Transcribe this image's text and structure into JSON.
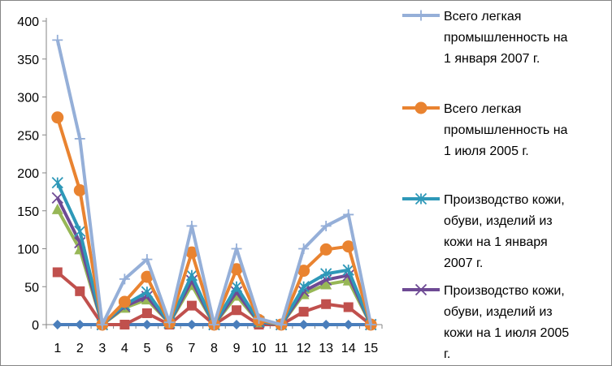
{
  "chart_data": {
    "type": "line",
    "title": "",
    "xlabel": "",
    "ylabel": "",
    "categories": [
      "1",
      "2",
      "3",
      "4",
      "5",
      "6",
      "7",
      "8",
      "9",
      "10",
      "11",
      "12",
      "13",
      "14",
      "15"
    ],
    "ylim": [
      0,
      400
    ],
    "yticks": [
      0,
      50,
      100,
      150,
      200,
      250,
      300,
      350,
      400
    ],
    "grid": false,
    "legend_position": "right",
    "series": [
      {
        "name_lines": [
          "Всего легкая",
          "промышленность на",
          "1 января 2007 г."
        ],
        "color": "#95AFD8",
        "marker": "plus",
        "values": [
          375,
          245,
          0,
          60,
          86,
          3,
          130,
          0,
          100,
          8,
          0,
          100,
          130,
          145,
          0
        ],
        "in_legend": true
      },
      {
        "name_lines": [
          "Всего легкая",
          "промышленность на",
          "1 июля 2005 г."
        ],
        "color": "#E98330",
        "marker": "circle",
        "values": [
          273,
          177,
          0,
          30,
          63,
          2,
          95,
          0,
          73,
          6,
          0,
          71,
          99,
          103,
          0
        ],
        "in_legend": true
      },
      {
        "name_lines": [
          "Производство кожи,",
          "обуви, изделий из",
          "кожи на 1 января",
          "2007 г."
        ],
        "color": "#2E98B8",
        "marker": "star",
        "values": [
          187,
          123,
          0,
          26,
          43,
          2,
          65,
          0,
          50,
          4,
          0,
          50,
          67,
          72,
          0
        ],
        "in_legend": true
      },
      {
        "name_lines": [
          "Производство кожи,",
          "обуви, изделий из",
          "кожи на 1 июля 2005",
          "г."
        ],
        "color": "#6E4A94",
        "marker": "x",
        "values": [
          167,
          108,
          0,
          24,
          37,
          2,
          58,
          0,
          43,
          3,
          0,
          44,
          59,
          65,
          0
        ],
        "in_legend": true
      },
      {
        "name_lines": [],
        "color": "#97B756",
        "marker": "triangle",
        "values": [
          152,
          99,
          0,
          22,
          33,
          2,
          52,
          0,
          38,
          3,
          0,
          40,
          53,
          58,
          0
        ],
        "in_legend": false
      },
      {
        "name_lines": [],
        "color": "#C0504D",
        "marker": "square",
        "values": [
          69,
          44,
          0,
          0,
          15,
          0,
          25,
          0,
          19,
          0,
          0,
          17,
          27,
          23,
          0
        ],
        "in_legend": false
      },
      {
        "name_lines": [],
        "color": "#4A7EBB",
        "marker": "diamond",
        "values": [
          0,
          0,
          0,
          0,
          0,
          0,
          0,
          0,
          0,
          0,
          0,
          0,
          0,
          0,
          0
        ],
        "in_legend": false
      }
    ]
  }
}
